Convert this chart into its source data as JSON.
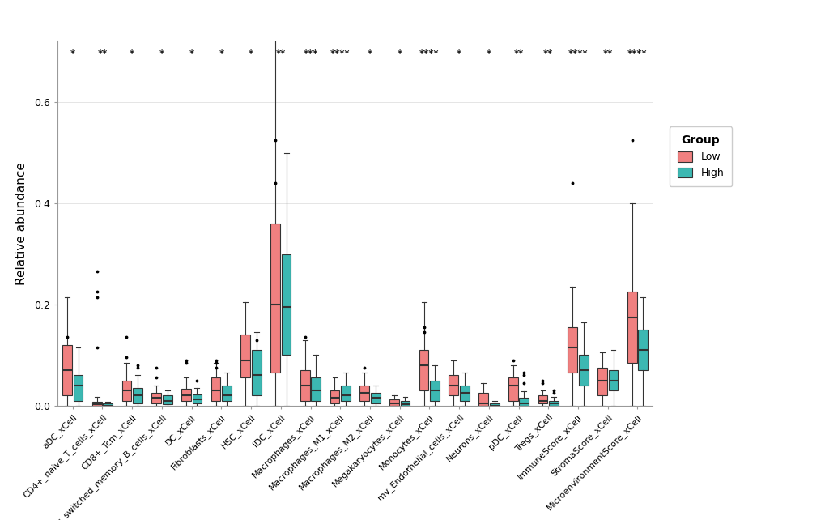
{
  "categories": [
    "aDC_xCell",
    "CD4+_naive_T_cells_xCell",
    "CD8+_Tcm_xCell",
    "Class_switched_memory_B_cells_xCell",
    "DC_xCell",
    "Fibroblasts_xCell",
    "HSC_xCell",
    "iDC_xCell",
    "Macrophages_xCell",
    "Macrophages_M1_xCell",
    "Macrophages_M2_xCell",
    "Megakaryocytes_xCell",
    "Monocytes_xCell",
    "mv_Endothelial_cells_xCell",
    "Neurons_xCell",
    "pDC_xCell",
    "Tregs_xCell",
    "ImmuneScore_xCell",
    "StromaScore_xCell",
    "MicroenvironmentScore_xCell"
  ],
  "significance": [
    "*",
    "**",
    "*",
    "*",
    "*",
    "*",
    "*",
    "**",
    "***",
    "****",
    "*",
    "*",
    "****",
    "*",
    "*",
    "**",
    "**",
    "****",
    "**",
    "****"
  ],
  "low_color": "#F08080",
  "high_color": "#3CB8B2",
  "ylabel": "Relative abundance",
  "ylim": [
    0.0,
    0.72
  ],
  "yticks": [
    0.0,
    0.2,
    0.4,
    0.6
  ],
  "background_color": "#ffffff",
  "legend_title": "Group",
  "legend_labels": [
    "Low",
    "High"
  ],
  "box_width": 0.32,
  "low_data": {
    "aDC_xCell": {
      "q1": 0.02,
      "median": 0.07,
      "q3": 0.12,
      "whislo": 0.0,
      "whishi": 0.215,
      "fliers": [
        0.135
      ]
    },
    "CD4+_naive_T_cells_xCell": {
      "q1": 0.0,
      "median": 0.003,
      "q3": 0.008,
      "whislo": 0.0,
      "whishi": 0.018,
      "fliers": [
        0.265,
        0.225,
        0.215,
        0.115
      ]
    },
    "CD8+_Tcm_xCell": {
      "q1": 0.01,
      "median": 0.03,
      "q3": 0.05,
      "whislo": 0.0,
      "whishi": 0.085,
      "fliers": [
        0.095,
        0.135
      ]
    },
    "Class_switched_memory_B_cells_xCell": {
      "q1": 0.005,
      "median": 0.015,
      "q3": 0.025,
      "whislo": 0.0,
      "whishi": 0.04,
      "fliers": [
        0.055,
        0.075
      ]
    },
    "DC_xCell": {
      "q1": 0.01,
      "median": 0.02,
      "q3": 0.033,
      "whislo": 0.0,
      "whishi": 0.055,
      "fliers": [
        0.09,
        0.085
      ]
    },
    "Fibroblasts_xCell": {
      "q1": 0.01,
      "median": 0.03,
      "q3": 0.055,
      "whislo": 0.0,
      "whishi": 0.085,
      "fliers": [
        0.09,
        0.085,
        0.075
      ]
    },
    "HSC_xCell": {
      "q1": 0.055,
      "median": 0.09,
      "q3": 0.14,
      "whislo": 0.0,
      "whishi": 0.205,
      "fliers": []
    },
    "iDC_xCell": {
      "q1": 0.065,
      "median": 0.2,
      "q3": 0.36,
      "whislo": 0.0,
      "whishi": 0.73,
      "fliers": [
        0.44,
        0.525
      ]
    },
    "Macrophages_xCell": {
      "q1": 0.01,
      "median": 0.04,
      "q3": 0.07,
      "whislo": 0.0,
      "whishi": 0.13,
      "fliers": [
        0.135
      ]
    },
    "Macrophages_M1_xCell": {
      "q1": 0.005,
      "median": 0.015,
      "q3": 0.03,
      "whislo": 0.0,
      "whishi": 0.055,
      "fliers": []
    },
    "Macrophages_M2_xCell": {
      "q1": 0.01,
      "median": 0.025,
      "q3": 0.04,
      "whislo": 0.0,
      "whishi": 0.065,
      "fliers": [
        0.075
      ]
    },
    "Megakaryocytes_xCell": {
      "q1": 0.0,
      "median": 0.005,
      "q3": 0.012,
      "whislo": 0.0,
      "whishi": 0.02,
      "fliers": []
    },
    "Monocytes_xCell": {
      "q1": 0.03,
      "median": 0.08,
      "q3": 0.11,
      "whislo": 0.0,
      "whishi": 0.205,
      "fliers": [
        0.145,
        0.155
      ]
    },
    "mv_Endothelial_cells_xCell": {
      "q1": 0.02,
      "median": 0.04,
      "q3": 0.06,
      "whislo": 0.0,
      "whishi": 0.09,
      "fliers": []
    },
    "Neurons_xCell": {
      "q1": 0.0,
      "median": 0.005,
      "q3": 0.025,
      "whislo": 0.0,
      "whishi": 0.045,
      "fliers": []
    },
    "pDC_xCell": {
      "q1": 0.01,
      "median": 0.04,
      "q3": 0.055,
      "whislo": 0.0,
      "whishi": 0.08,
      "fliers": [
        0.09
      ]
    },
    "Tregs_xCell": {
      "q1": 0.005,
      "median": 0.01,
      "q3": 0.02,
      "whislo": 0.0,
      "whishi": 0.03,
      "fliers": [
        0.045,
        0.05
      ]
    },
    "ImmuneScore_xCell": {
      "q1": 0.065,
      "median": 0.115,
      "q3": 0.155,
      "whislo": 0.0,
      "whishi": 0.235,
      "fliers": [
        0.44
      ]
    },
    "StromaScore_xCell": {
      "q1": 0.02,
      "median": 0.05,
      "q3": 0.075,
      "whislo": 0.0,
      "whishi": 0.105,
      "fliers": []
    },
    "MicroenvironmentScore_xCell": {
      "q1": 0.085,
      "median": 0.175,
      "q3": 0.225,
      "whislo": 0.0,
      "whishi": 0.4,
      "fliers": [
        0.525
      ]
    }
  },
  "high_data": {
    "aDC_xCell": {
      "q1": 0.01,
      "median": 0.04,
      "q3": 0.06,
      "whislo": 0.0,
      "whishi": 0.115,
      "fliers": []
    },
    "CD4+_naive_T_cells_xCell": {
      "q1": 0.0,
      "median": 0.0,
      "q3": 0.004,
      "whislo": 0.0,
      "whishi": 0.008,
      "fliers": []
    },
    "CD8+_Tcm_xCell": {
      "q1": 0.005,
      "median": 0.02,
      "q3": 0.035,
      "whislo": 0.0,
      "whishi": 0.06,
      "fliers": [
        0.075,
        0.08
      ]
    },
    "Class_switched_memory_B_cells_xCell": {
      "q1": 0.003,
      "median": 0.01,
      "q3": 0.02,
      "whislo": 0.0,
      "whishi": 0.03,
      "fliers": []
    },
    "DC_xCell": {
      "q1": 0.005,
      "median": 0.013,
      "q3": 0.022,
      "whislo": 0.0,
      "whishi": 0.035,
      "fliers": [
        0.05
      ]
    },
    "Fibroblasts_xCell": {
      "q1": 0.01,
      "median": 0.02,
      "q3": 0.04,
      "whislo": 0.0,
      "whishi": 0.065,
      "fliers": []
    },
    "HSC_xCell": {
      "q1": 0.02,
      "median": 0.06,
      "q3": 0.11,
      "whislo": 0.0,
      "whishi": 0.145,
      "fliers": [
        0.13
      ]
    },
    "iDC_xCell": {
      "q1": 0.1,
      "median": 0.195,
      "q3": 0.3,
      "whislo": 0.0,
      "whishi": 0.5,
      "fliers": []
    },
    "Macrophages_xCell": {
      "q1": 0.01,
      "median": 0.03,
      "q3": 0.055,
      "whislo": 0.0,
      "whishi": 0.1,
      "fliers": []
    },
    "Macrophages_M1_xCell": {
      "q1": 0.01,
      "median": 0.02,
      "q3": 0.04,
      "whislo": 0.0,
      "whishi": 0.065,
      "fliers": []
    },
    "Macrophages_M2_xCell": {
      "q1": 0.005,
      "median": 0.015,
      "q3": 0.025,
      "whislo": 0.0,
      "whishi": 0.04,
      "fliers": []
    },
    "Megakaryocytes_xCell": {
      "q1": 0.0,
      "median": 0.003,
      "q3": 0.01,
      "whislo": 0.0,
      "whishi": 0.018,
      "fliers": []
    },
    "Monocytes_xCell": {
      "q1": 0.01,
      "median": 0.03,
      "q3": 0.05,
      "whislo": 0.0,
      "whishi": 0.08,
      "fliers": []
    },
    "mv_Endothelial_cells_xCell": {
      "q1": 0.01,
      "median": 0.025,
      "q3": 0.04,
      "whislo": 0.0,
      "whishi": 0.065,
      "fliers": []
    },
    "Neurons_xCell": {
      "q1": 0.0,
      "median": 0.0,
      "q3": 0.005,
      "whislo": 0.0,
      "whishi": 0.01,
      "fliers": []
    },
    "pDC_xCell": {
      "q1": 0.0,
      "median": 0.005,
      "q3": 0.015,
      "whislo": 0.0,
      "whishi": 0.028,
      "fliers": [
        0.045,
        0.06,
        0.065
      ]
    },
    "Tregs_xCell": {
      "q1": 0.0,
      "median": 0.005,
      "q3": 0.01,
      "whislo": 0.0,
      "whishi": 0.018,
      "fliers": [
        0.025,
        0.03
      ]
    },
    "ImmuneScore_xCell": {
      "q1": 0.04,
      "median": 0.07,
      "q3": 0.1,
      "whislo": 0.0,
      "whishi": 0.165,
      "fliers": []
    },
    "StromaScore_xCell": {
      "q1": 0.03,
      "median": 0.05,
      "q3": 0.07,
      "whislo": 0.0,
      "whishi": 0.11,
      "fliers": []
    },
    "MicroenvironmentScore_xCell": {
      "q1": 0.07,
      "median": 0.11,
      "q3": 0.15,
      "whislo": 0.0,
      "whishi": 0.215,
      "fliers": []
    }
  }
}
